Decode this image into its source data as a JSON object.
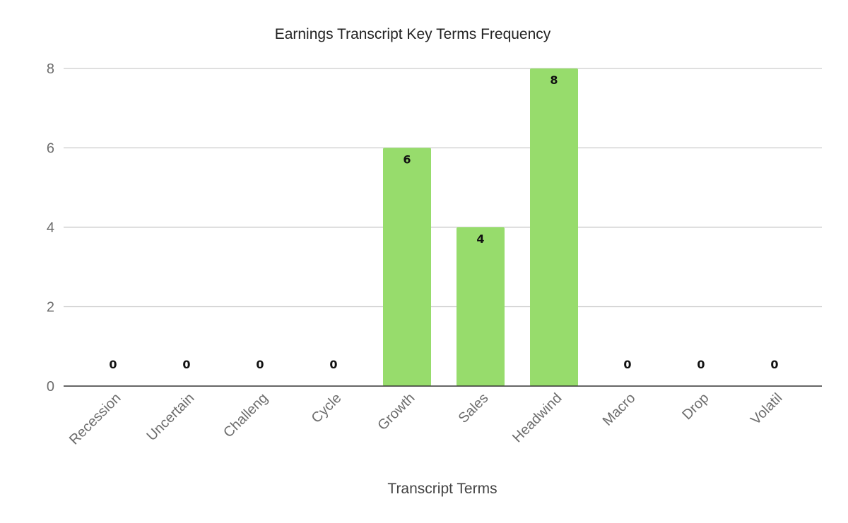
{
  "chart_data": {
    "type": "bar",
    "title": "Earnings Transcript Key Terms Frequency",
    "xlabel": "Transcript Terms",
    "ylabel": "",
    "categories": [
      "Recession",
      "Uncertain",
      "Challeng",
      "Cycle",
      "Growth",
      "Sales",
      "Headwind",
      "Macro",
      "Drop",
      "Volatil"
    ],
    "values": [
      0,
      0,
      0,
      0,
      6,
      4,
      8,
      0,
      0,
      0
    ],
    "ylim": [
      0,
      8
    ],
    "yticks": [
      0,
      2,
      4,
      6,
      8
    ],
    "grid": true,
    "legend": "none",
    "data_labels": true,
    "colors": {
      "bar": "#97dc6c",
      "gridline": "#cccccc",
      "baseline": "#333333",
      "tick_text": "#6d6d6d",
      "title_text": "#222222"
    }
  }
}
